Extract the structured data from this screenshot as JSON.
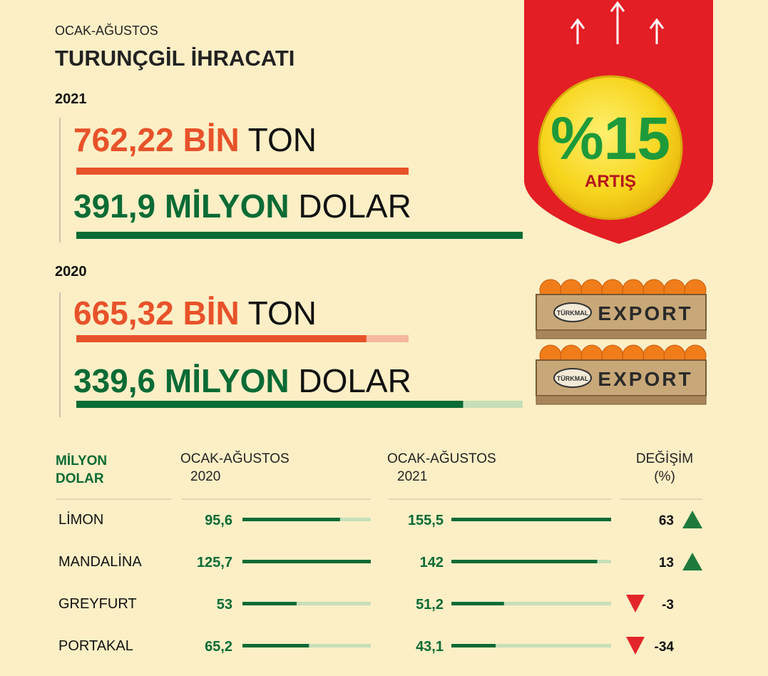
{
  "header": {
    "subtitle": "OCAK-AĞUSTOS",
    "title": "TURUNÇGİL İHRACATI"
  },
  "years": [
    {
      "year": "2021",
      "tons": {
        "amount": {
          "value": 762.22,
          "label": "762,22"
        },
        "scale": "BİN",
        "unit": "TON"
      },
      "dollars": {
        "amount": {
          "value": 391.9,
          "label": "391,9"
        },
        "scale": "MİLYON",
        "unit": "DOLAR"
      }
    },
    {
      "year": "2020",
      "tons": {
        "amount": {
          "value": 665.32,
          "label": "665,32"
        },
        "scale": "BİN",
        "unit": "TON"
      },
      "dollars": {
        "amount": {
          "value": 339.6,
          "label": "339,6"
        },
        "scale": "MİLYON",
        "unit": "DOLAR"
      }
    }
  ],
  "badge": {
    "value": "%15",
    "label": "ARTIŞ"
  },
  "crates": [
    {
      "brand": "TÜRKMAL",
      "label": "EXPORT"
    },
    {
      "brand": "TÜRKMAL",
      "label": "EXPORT"
    }
  ],
  "table": {
    "headers": [
      [
        "MİLYON",
        "DOLAR"
      ],
      [
        "OCAK-AĞUSTOS",
        "2020"
      ],
      [
        "OCAK-AĞUSTOS",
        "2021"
      ],
      [
        "DEĞİŞİM",
        "(%)"
      ]
    ],
    "rows": [
      {
        "name": "LİMON",
        "v2020": {
          "value": 95.6,
          "label": "95,6"
        },
        "v2021": {
          "value": 155.5,
          "label": "155,5"
        },
        "change": 63
      },
      {
        "name": "MANDALİNA",
        "v2020": {
          "value": 125.7,
          "label": "125,7"
        },
        "v2021": 142,
        "change": 13
      },
      {
        "name": "GREYFURT",
        "v2020": 53,
        "v2021": {
          "value": 51.2,
          "label": "51,2"
        },
        "change": -3
      },
      {
        "name": "PORTAKAL",
        "v2020": {
          "value": 65.2,
          "label": "65,2"
        },
        "v2021": {
          "value": 43.1,
          "label": "43,1"
        },
        "change": -34
      }
    ]
  }
}
